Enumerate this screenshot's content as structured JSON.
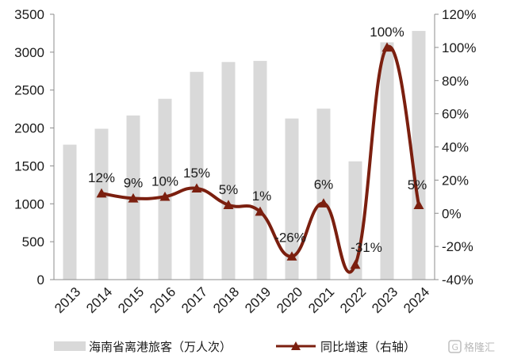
{
  "chart_data": {
    "type": "bar",
    "categories": [
      "2013",
      "2014",
      "2015",
      "2016",
      "2017",
      "2018",
      "2019",
      "2020",
      "2021",
      "2022",
      "2023",
      "2024"
    ],
    "series": [
      {
        "name": "海南省离港旅客（万人次）",
        "type": "bar",
        "axis": "left",
        "color": "#d9d9d9",
        "values": [
          1780,
          1990,
          2165,
          2385,
          2740,
          2870,
          2885,
          2125,
          2255,
          1560,
          3130,
          3280
        ]
      },
      {
        "name": "同比增速（右轴）",
        "type": "line",
        "axis": "right",
        "color": "#7b1f0f",
        "values": [
          null,
          12,
          9,
          10,
          15,
          5,
          1,
          -26,
          6,
          -31,
          100,
          5
        ],
        "labels": [
          "",
          "12%",
          "9%",
          "10%",
          "15%",
          "5%",
          "1%",
          "-26%",
          "6%",
          "-31%",
          "100%",
          "5%"
        ]
      }
    ],
    "left_axis": {
      "range": [
        0,
        3500
      ],
      "ticks": [
        "0",
        "500",
        "1000",
        "1500",
        "2000",
        "2500",
        "3000",
        "3500"
      ]
    },
    "right_axis": {
      "range": [
        -40,
        120
      ],
      "ticks": [
        "-40%",
        "-20%",
        "0%",
        "20%",
        "40%",
        "60%",
        "80%",
        "100%",
        "120%"
      ]
    },
    "grid": false,
    "legend_position": "bottom"
  },
  "watermark": {
    "text": "格隆汇"
  }
}
